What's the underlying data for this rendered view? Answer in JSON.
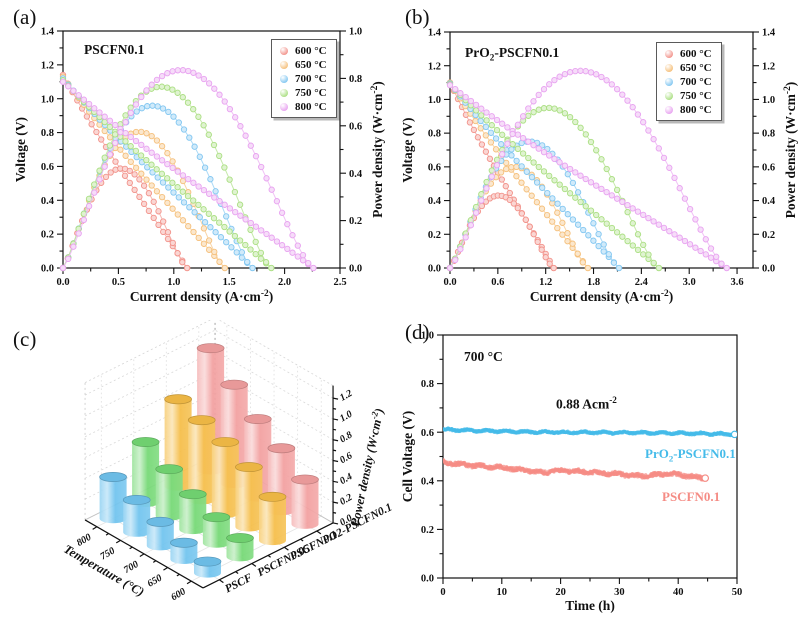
{
  "figure": {
    "background": "#ffffff"
  },
  "legend_labels": [
    "600 °C",
    "650 °C",
    "700 °C",
    "750 °C",
    "800 °C"
  ],
  "chart_data": [
    {
      "panel": "a",
      "panel_letter": "(a)",
      "type": "line",
      "inplot_title": "PSCFN0.1",
      "xlabel_pre": "Current density (A·cm",
      "xlabel_sup": "-2",
      "xlabel_post": ")",
      "ylabel_left": "Voltage (V)",
      "yrlabel_pre": "Power density (W·cm",
      "yrlabel_sup": "-2",
      "yrlabel_post": ")",
      "xlim": [
        0,
        2.5
      ],
      "xtick_step": 0.5,
      "x_decimals": 1,
      "ylim_left": [
        0,
        1.4
      ],
      "ytick_step": 0.2,
      "ylim_right": [
        0,
        1.0
      ],
      "yrtick_step": 0.2,
      "legend": [
        "600 °C",
        "650 °C",
        "700 °C",
        "750 °C",
        "800 °C"
      ],
      "series": [
        {
          "name": "600 °C",
          "color": "#f2938b",
          "ocv": 1.14,
          "i_max": 1.12,
          "p_max": 0.42
        },
        {
          "name": "650 °C",
          "color": "#f5c07c",
          "ocv": 1.13,
          "i_max": 1.46,
          "p_max": 0.575
        },
        {
          "name": "700 °C",
          "color": "#83c7f1",
          "ocv": 1.12,
          "i_max": 1.71,
          "p_max": 0.685
        },
        {
          "name": "750 °C",
          "color": "#abdf83",
          "ocv": 1.11,
          "i_max": 1.88,
          "p_max": 0.765
        },
        {
          "name": "800 °C",
          "color": "#e8a3f0",
          "ocv": 1.1,
          "i_max": 2.26,
          "p_max": 0.835
        }
      ]
    },
    {
      "panel": "b",
      "panel_letter": "(b)",
      "type": "line",
      "inplot_title_pre": "PrO",
      "inplot_title_sub": "2",
      "inplot_title_post": "-PSCFN0.1",
      "xlabel_pre": "Current density (A·cm",
      "xlabel_sup": "-2",
      "xlabel_post": ")",
      "ylabel_left": "Voltage (V)",
      "yrlabel_pre": "Power density (W·cm",
      "yrlabel_sup": "-2",
      "yrlabel_post": ")",
      "xlim": [
        0,
        3.8
      ],
      "xtick_step": 0.6,
      "x_decimals": 1,
      "ylim_left": [
        0,
        1.4
      ],
      "ytick_step": 0.2,
      "ylim_right": [
        0,
        1.4
      ],
      "yrtick_step": 0.2,
      "legend": [
        "600 °C",
        "650 °C",
        "700 °C",
        "750 °C",
        "800 °C"
      ],
      "series": [
        {
          "name": "600 °C",
          "color": "#f2938b",
          "ocv": 1.1,
          "i_max": 1.3,
          "p_max": 0.43
        },
        {
          "name": "650 °C",
          "color": "#f5c07c",
          "ocv": 1.1,
          "i_max": 1.73,
          "p_max": 0.6
        },
        {
          "name": "700 °C",
          "color": "#83c7f1",
          "ocv": 1.095,
          "i_max": 2.12,
          "p_max": 0.75
        },
        {
          "name": "750 °C",
          "color": "#abdf83",
          "ocv": 1.09,
          "i_max": 2.62,
          "p_max": 0.95
        },
        {
          "name": "800 °C",
          "color": "#e8a3f0",
          "ocv": 1.085,
          "i_max": 3.47,
          "p_max": 1.17
        }
      ]
    },
    {
      "panel": "c",
      "panel_letter": "(c)",
      "type": "bar3d",
      "xlabel": "Temperature (°C)",
      "zlabel_pre": "Power density (W·cm",
      "zlabel_sup": "-2",
      "zlabel_post": ")",
      "temp_ticks": [
        "600",
        "650",
        "700",
        "750",
        "800"
      ],
      "sample_ticks": [
        "PSCF",
        "PSCFN0.05",
        "PSCFN0.1",
        "PO2-PSCFN0.1"
      ],
      "zlim": [
        0,
        1.2
      ],
      "ztick_step": 0.2,
      "series": [
        {
          "name": "PSCF",
          "color": "#6fc3ee",
          "values": [
            0.11,
            0.16,
            0.23,
            0.31,
            0.4
          ]
        },
        {
          "name": "PSCFN0.05",
          "color": "#74d874",
          "values": [
            0.18,
            0.25,
            0.34,
            0.45,
            0.58
          ]
        },
        {
          "name": "PSCFN0.1",
          "color": "#f5bd47",
          "values": [
            0.42,
            0.575,
            0.685,
            0.765,
            0.835
          ]
        },
        {
          "name": "PO2-PSCFN0.1",
          "color": "#f29f9f",
          "values": [
            0.43,
            0.6,
            0.75,
            0.95,
            1.17
          ]
        }
      ]
    },
    {
      "panel": "d",
      "panel_letter": "(d)",
      "type": "scatter",
      "inplot_temp": "700 °C",
      "current_pre": "0.88 Acm",
      "current_sup": "-2",
      "xlabel": "Time (h)",
      "ylabel": "Cell Voltage (V)",
      "xlim": [
        0,
        50
      ],
      "xtick_step": 10,
      "x_decimals": 0,
      "ylim": [
        0,
        1.0
      ],
      "ytick_step": 0.2,
      "series": [
        {
          "name_pre": "PrO",
          "name_sub": "2",
          "name_post": "-PSCFN0.1",
          "color": "#45bbe9",
          "noise": 0.0035,
          "points": [
            [
              0,
              0.611
            ],
            [
              5,
              0.607
            ],
            [
              10,
              0.604
            ],
            [
              15,
              0.601
            ],
            [
              20,
              0.6
            ],
            [
              25,
              0.599
            ],
            [
              30,
              0.598
            ],
            [
              35,
              0.597
            ],
            [
              40,
              0.596
            ],
            [
              45,
              0.594
            ],
            [
              50,
              0.591
            ]
          ]
        },
        {
          "name": "PSCFN0.1",
          "color": "#f58c85",
          "noise": 0.007,
          "points": [
            [
              0,
              0.478
            ],
            [
              2,
              0.47
            ],
            [
              5,
              0.463
            ],
            [
              8,
              0.458
            ],
            [
              10,
              0.455
            ],
            [
              12,
              0.449
            ],
            [
              15,
              0.44
            ],
            [
              17,
              0.433
            ],
            [
              20,
              0.443
            ],
            [
              22,
              0.44
            ],
            [
              25,
              0.436
            ],
            [
              28,
              0.43
            ],
            [
              30,
              0.428
            ],
            [
              32,
              0.422
            ],
            [
              34,
              0.42
            ],
            [
              36,
              0.424
            ],
            [
              38,
              0.429
            ],
            [
              40,
              0.426
            ],
            [
              42,
              0.418
            ],
            [
              44.6,
              0.411
            ]
          ]
        }
      ]
    }
  ]
}
